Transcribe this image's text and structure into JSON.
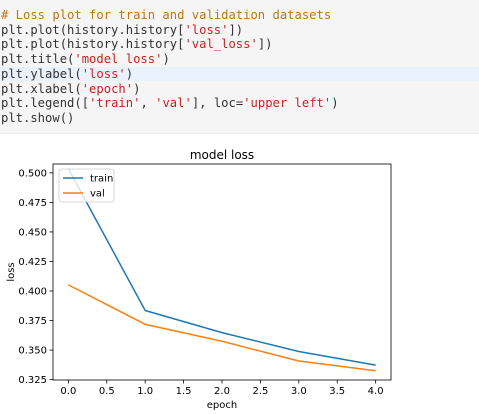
{
  "code_cell": {
    "lines": [
      {
        "tokens": [
          {
            "t": "# Loss plot for train and validation datasets",
            "c": "comment"
          }
        ]
      },
      {
        "tokens": [
          {
            "t": "plt.plot(history.history[",
            "c": "text"
          },
          {
            "t": "'loss'",
            "c": "string"
          },
          {
            "t": "])",
            "c": "text"
          }
        ]
      },
      {
        "tokens": [
          {
            "t": "plt.plot(history.history[",
            "c": "text"
          },
          {
            "t": "'val_loss'",
            "c": "string"
          },
          {
            "t": "])",
            "c": "text"
          }
        ]
      },
      {
        "tokens": [
          {
            "t": "plt.title(",
            "c": "text"
          },
          {
            "t": "'model loss'",
            "c": "string"
          },
          {
            "t": ")",
            "c": "text"
          }
        ]
      },
      {
        "tokens": [
          {
            "t": "plt.ylabel(",
            "c": "text"
          },
          {
            "t": "'loss'",
            "c": "string"
          },
          {
            "t": ")",
            "c": "text"
          }
        ],
        "highlighted": true
      },
      {
        "tokens": [
          {
            "t": "plt.xlabel(",
            "c": "text"
          },
          {
            "t": "'epoch'",
            "c": "string"
          },
          {
            "t": ")",
            "c": "text"
          }
        ]
      },
      {
        "tokens": [
          {
            "t": "plt.legend([",
            "c": "text"
          },
          {
            "t": "'train'",
            "c": "string"
          },
          {
            "t": ", ",
            "c": "text"
          },
          {
            "t": "'val'",
            "c": "string"
          },
          {
            "t": "], loc=",
            "c": "text"
          },
          {
            "t": "'upper left'",
            "c": "string"
          },
          {
            "t": ")",
            "c": "text"
          }
        ]
      },
      {
        "tokens": [
          {
            "t": "plt.show()",
            "c": "text"
          }
        ]
      }
    ]
  },
  "colors": {
    "train": "#1f77b4",
    "val": "#ff7f0e",
    "axis": "#000000",
    "code_background": "#f5f5f5"
  },
  "chart_data": {
    "type": "line",
    "title": "model loss",
    "xlabel": "epoch",
    "ylabel": "loss",
    "x": [
      0,
      1,
      2,
      3,
      4
    ],
    "series": [
      {
        "name": "train",
        "values": [
          0.5035,
          0.3835,
          0.3648,
          0.3488,
          0.3373
        ]
      },
      {
        "name": "val",
        "values": [
          0.4052,
          0.3718,
          0.3575,
          0.3408,
          0.3325
        ]
      }
    ],
    "xlim": [
      -0.2,
      4.2
    ],
    "ylim": [
      0.3247,
      0.5075
    ],
    "xticks": [
      0.0,
      0.5,
      1.0,
      1.5,
      2.0,
      2.5,
      3.0,
      3.5,
      4.0
    ],
    "xtick_labels": [
      "0.0",
      "0.5",
      "1.0",
      "1.5",
      "2.0",
      "2.5",
      "3.0",
      "3.5",
      "4.0"
    ],
    "yticks": [
      0.325,
      0.35,
      0.375,
      0.4,
      0.425,
      0.45,
      0.475,
      0.5
    ],
    "ytick_labels": [
      "0.325",
      "0.350",
      "0.375",
      "0.400",
      "0.425",
      "0.450",
      "0.475",
      "0.500"
    ],
    "legend": {
      "loc": "upper left",
      "entries": [
        "train",
        "val"
      ]
    },
    "grid": false
  }
}
